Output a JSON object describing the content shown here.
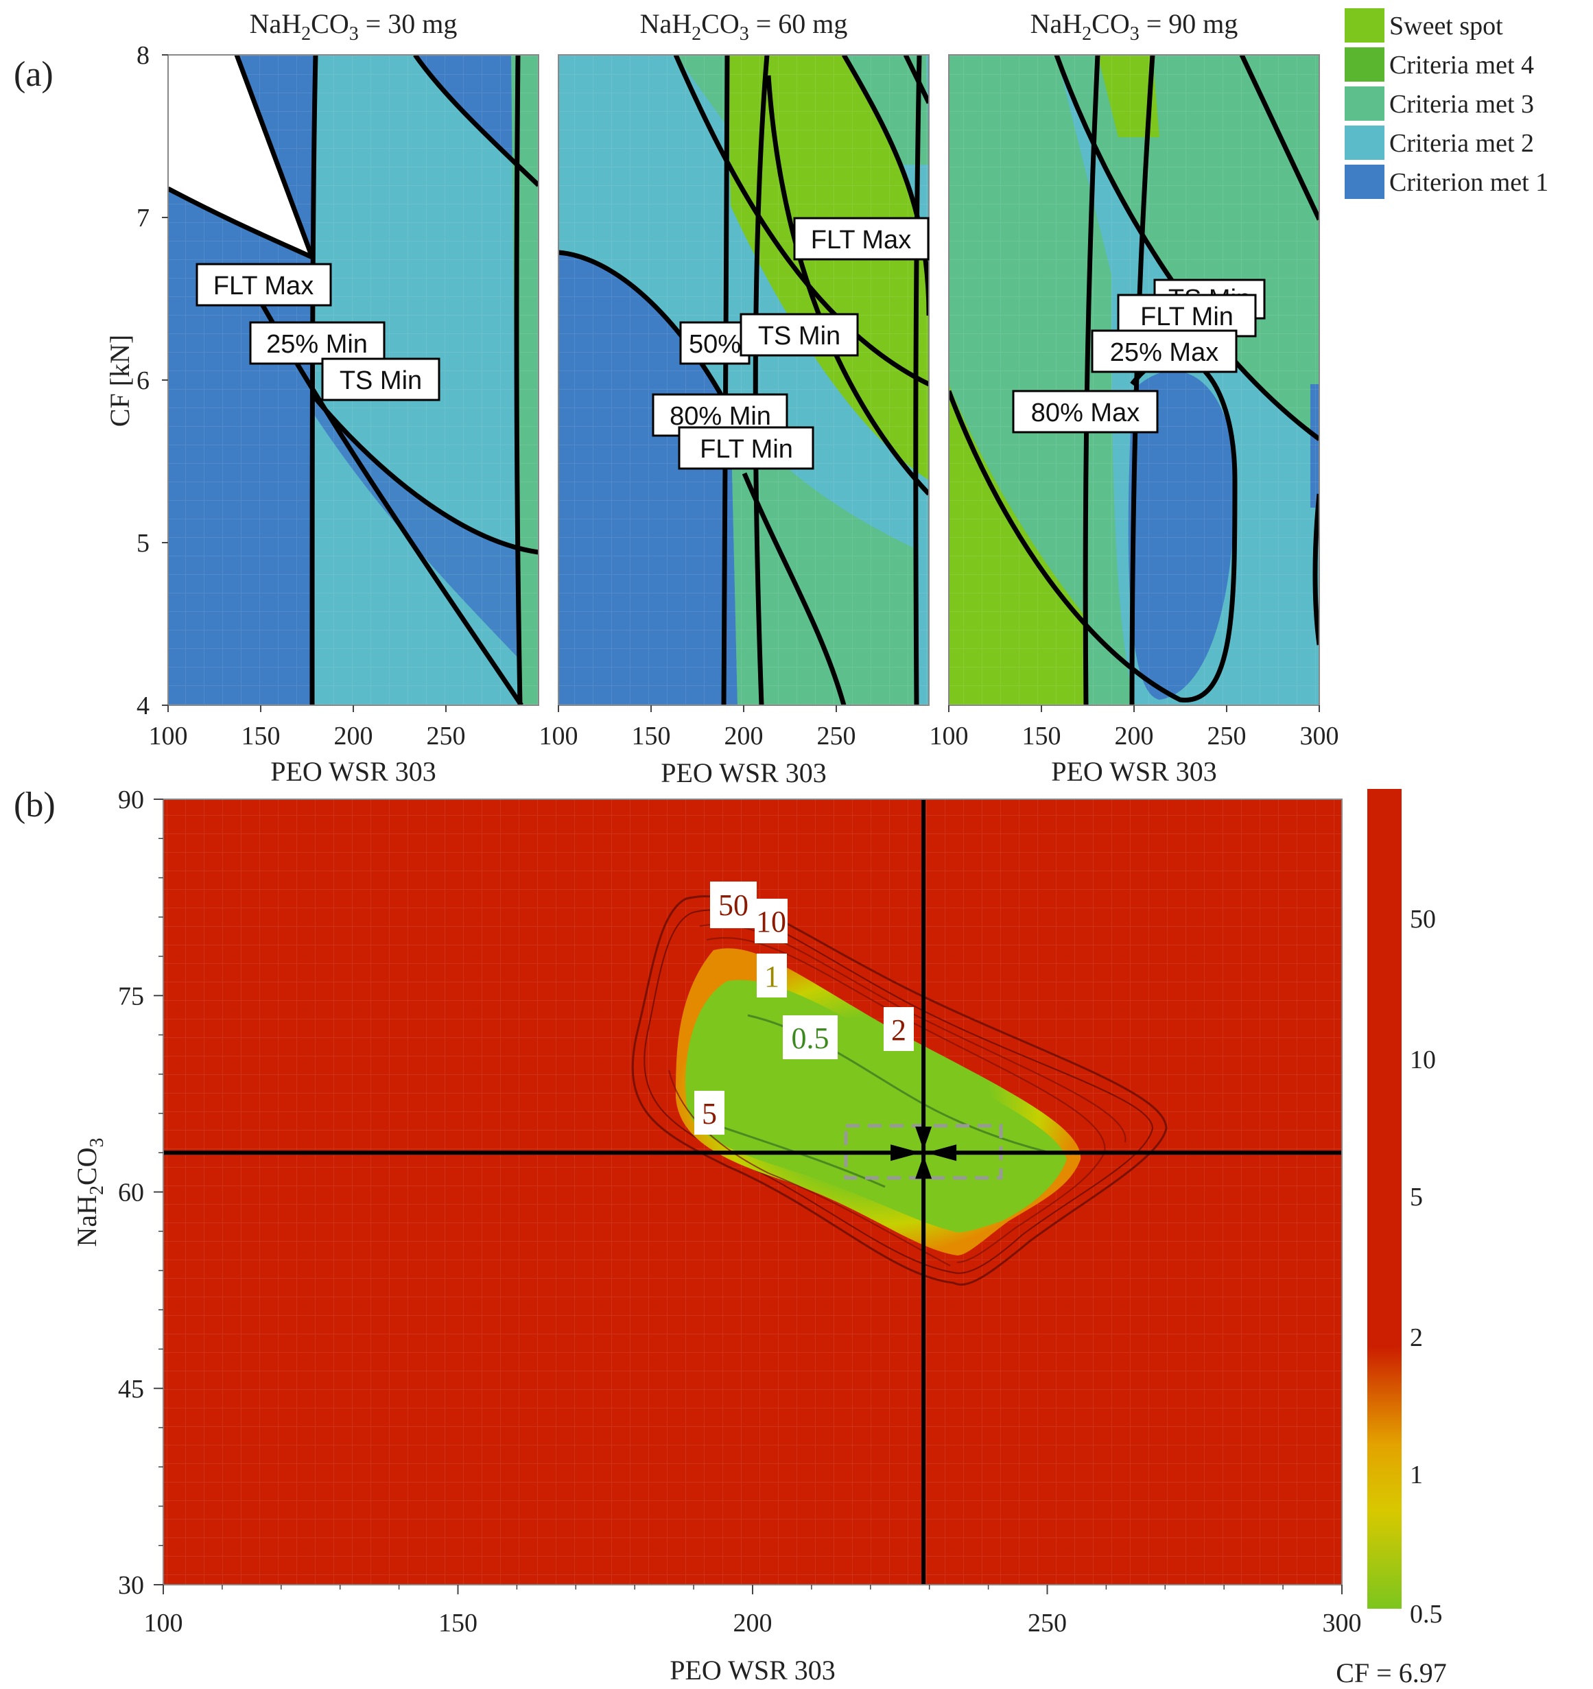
{
  "chart_data": [
    {
      "panel": "(a)",
      "type": "contour-overlay",
      "subplots": [
        {
          "title_prefix": "NaH",
          "title_sub1": "2",
          "title_mid": "CO",
          "title_sub2": "3",
          "title_suffix": " = 30 mg",
          "nah2co3_mg": 30,
          "labels": [
            "FLT Max",
            "25% Min",
            "TS Min"
          ]
        },
        {
          "title_prefix": "NaH",
          "title_sub1": "2",
          "title_mid": "CO",
          "title_sub2": "3",
          "title_suffix": " = 60 mg",
          "nah2co3_mg": 60,
          "labels": [
            "FLT Max",
            "50%",
            "TS Min",
            "80% Min",
            "FLT Min"
          ]
        },
        {
          "title_prefix": "NaH",
          "title_sub1": "2",
          "title_mid": "CO",
          "title_sub2": "3",
          "title_suffix": " = 90 mg",
          "nah2co3_mg": 90,
          "labels": [
            "TS Min",
            "FLT Min",
            "25% Max",
            "80% Max"
          ]
        }
      ],
      "xlabel": "PEO WSR 303",
      "ylabel": "CF [kN]",
      "xlim": [
        100,
        300
      ],
      "ylim": [
        4,
        8
      ],
      "xticks": [
        100,
        150,
        200,
        250
      ],
      "xticks_last": [
        100,
        150,
        200,
        250,
        300
      ],
      "yticks": [
        4,
        5,
        6,
        7,
        8
      ],
      "legend": [
        {
          "label": "Sweet spot",
          "color": "#7cc61e"
        },
        {
          "label": "Criteria met 4",
          "color": "#5ab52f"
        },
        {
          "label": "Criteria met 3",
          "color": "#5cbf8c"
        },
        {
          "label": "Criteria met 2",
          "color": "#5bbbc8"
        },
        {
          "label": "Criterion met 1",
          "color": "#3f7ec4"
        }
      ]
    },
    {
      "panel": "(b)",
      "type": "heatmap",
      "xlabel": "PEO WSR 303",
      "ylabel_prefix": "NaH",
      "ylabel_sub1": "2",
      "ylabel_mid": "CO",
      "ylabel_sub2": "3",
      "xlim": [
        100,
        300
      ],
      "ylim": [
        30,
        90
      ],
      "xticks": [
        100,
        150,
        200,
        250,
        300
      ],
      "yticks": [
        30,
        45,
        60,
        75,
        90
      ],
      "contour_levels": [
        "50",
        "10",
        "1",
        "0.5",
        "2",
        "5"
      ],
      "colorbar_ticks": [
        "50",
        "10",
        "5",
        "2",
        "1",
        "0.5"
      ],
      "crosshair": {
        "x": 229,
        "y": 63
      },
      "note": "CF = 6.97",
      "colors": {
        "high": "#cc1e00",
        "mid": "#e3a300",
        "low": "#7cc61e"
      }
    }
  ]
}
